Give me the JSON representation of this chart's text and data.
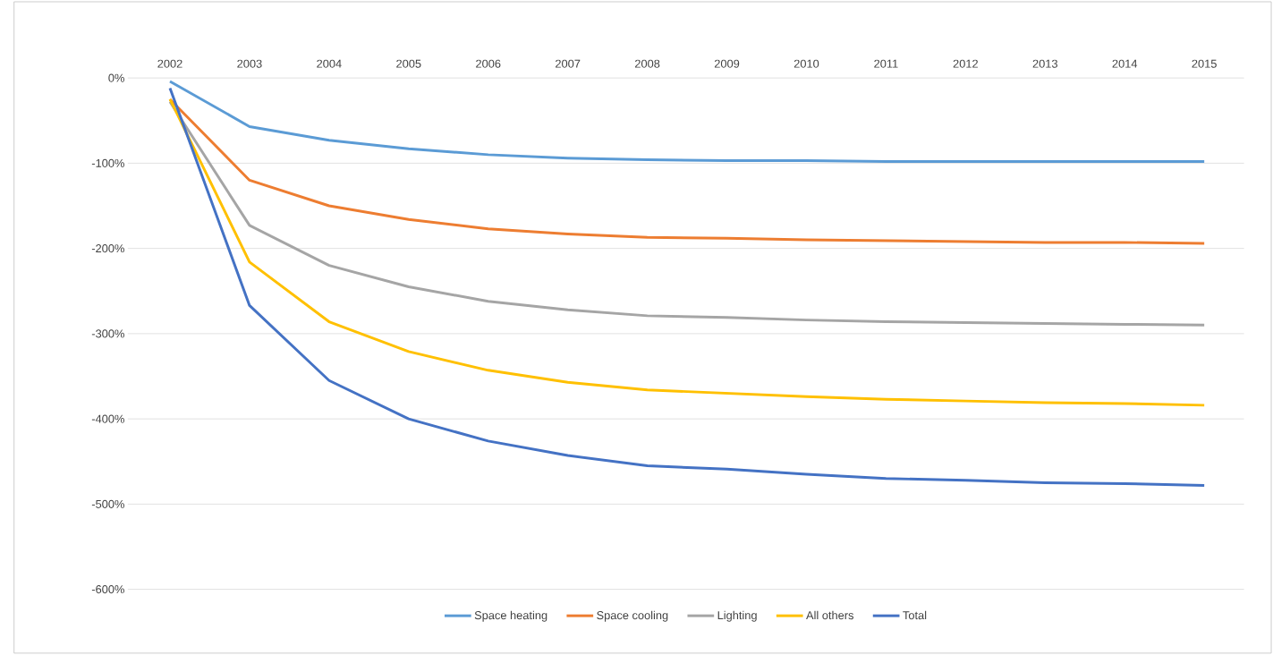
{
  "chart_data": {
    "type": "line",
    "categories": [
      "2002",
      "2003",
      "2004",
      "2005",
      "2006",
      "2007",
      "2008",
      "2009",
      "2010",
      "2011",
      "2012",
      "2013",
      "2014",
      "2015"
    ],
    "series": [
      {
        "name": "Space heating",
        "color": "#5b9bd5",
        "values": [
          -4,
          -57,
          -73,
          -83,
          -90,
          -94,
          -96,
          -97,
          -97,
          -98,
          -98,
          -98,
          -98,
          -98
        ]
      },
      {
        "name": "Space cooling",
        "color": "#ed7d31",
        "values": [
          -25,
          -120,
          -150,
          -166,
          -177,
          -183,
          -187,
          -188,
          -190,
          -191,
          -192,
          -193,
          -193,
          -194
        ]
      },
      {
        "name": "Lighting",
        "color": "#a5a5a5",
        "values": [
          -28,
          -173,
          -220,
          -245,
          -262,
          -272,
          -279,
          -281,
          -284,
          -286,
          -287,
          -288,
          -289,
          -290
        ]
      },
      {
        "name": "All others",
        "color": "#ffc000",
        "values": [
          -25,
          -216,
          -286,
          -321,
          -343,
          -357,
          -366,
          -370,
          -374,
          -377,
          -379,
          -381,
          -382,
          -384
        ]
      },
      {
        "name": "Total",
        "color": "#4472c4",
        "values": [
          -12,
          -267,
          -355,
          -400,
          -426,
          -443,
          -455,
          -459,
          -465,
          -470,
          -472,
          -475,
          -476,
          -478
        ]
      }
    ],
    "ylim": [
      -600,
      0
    ],
    "yticks": [
      {
        "value": 0,
        "label": "0%"
      },
      {
        "value": -100,
        "label": "-100%"
      },
      {
        "value": -200,
        "label": "-200%"
      },
      {
        "value": -300,
        "label": "-300%"
      },
      {
        "value": -400,
        "label": "-400%"
      },
      {
        "value": -500,
        "label": "-500%"
      },
      {
        "value": -600,
        "label": "-600%"
      }
    ],
    "grid": "y",
    "legend": "bottom",
    "marker": "none",
    "line_style": "solid"
  }
}
